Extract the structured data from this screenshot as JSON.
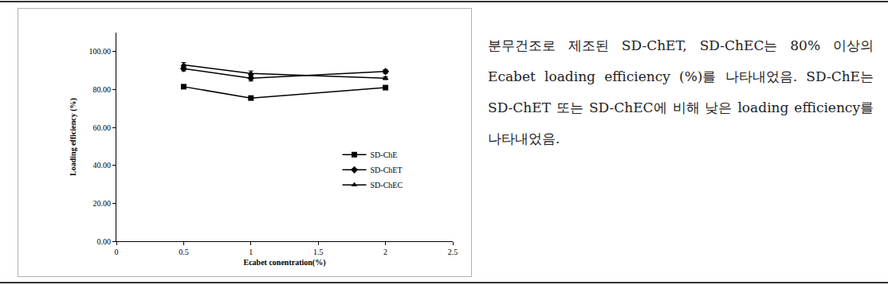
{
  "chart_data": {
    "type": "line",
    "x_label": "Ecabet conentration(%)",
    "y_label": "Loading efficiency (%)",
    "x": [
      0.5,
      1,
      2
    ],
    "series": [
      {
        "name": "SD-ChE",
        "color": "#000000",
        "marker": "square",
        "line_style": "solid",
        "values": [
          81.5,
          75.5,
          81.0
        ],
        "errors": [
          0.8,
          0.6,
          0.7
        ]
      },
      {
        "name": "SD-ChET",
        "color": "#000000",
        "marker": "diamond",
        "line_style": "solid",
        "values": [
          91.0,
          86.0,
          89.5
        ],
        "errors": [
          1.2,
          1.5,
          1.0
        ]
      },
      {
        "name": "SD-ChEC",
        "color": "#000000",
        "marker": "triangle-up",
        "line_style": "solid",
        "values": [
          93.0,
          88.5,
          86.0
        ],
        "errors": [
          1.2,
          1.3,
          0.8
        ]
      }
    ],
    "xlim": [
      0,
      2.5
    ],
    "xticks": [
      0,
      0.5,
      1,
      1.5,
      2,
      2.5
    ],
    "ylim": [
      0,
      110
    ],
    "yticks": [
      {
        "value": 0,
        "label": "0.00"
      },
      {
        "value": 20,
        "label": "20.00"
      },
      {
        "value": 40,
        "label": "40.00"
      },
      {
        "value": 60,
        "label": "60.00"
      },
      {
        "value": 80,
        "label": "80.00"
      },
      {
        "value": 100,
        "label": "100.00"
      }
    ],
    "grid": false,
    "legend": "right"
  },
  "caption": "분무건조로 제조된 SD-ChET, SD-ChEC는 80% 이상의 Ecabet loading efficiency (%)를 나타내었음. SD-ChE는 SD-ChET 또는 SD-ChEC에 비해 낮은 loading efficiency를 나타내었음."
}
